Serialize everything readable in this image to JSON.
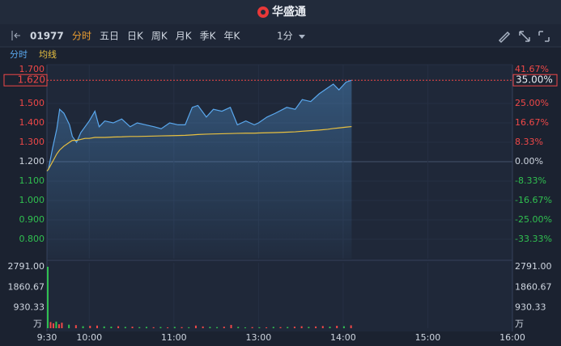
{
  "header": {
    "brand": "华盛通"
  },
  "toolbar": {
    "code": "01977",
    "tabs": [
      "分时",
      "五日",
      "日K",
      "周K",
      "月K",
      "季K",
      "年K"
    ],
    "active_tab": 0,
    "interval": "1分",
    "active_color": "#f0a030"
  },
  "chart_data": [
    {
      "type": "line",
      "x": [
        0,
        1,
        4,
        7,
        9,
        12,
        16,
        18,
        21,
        24,
        27,
        30,
        34,
        37,
        41,
        47,
        53,
        59,
        64,
        70,
        76,
        81,
        87,
        93,
        98,
        103,
        107,
        113,
        118,
        124,
        130,
        135,
        141,
        147,
        150,
        156,
        162,
        170,
        176,
        181,
        187,
        193,
        199,
        203,
        207,
        212,
        216
      ],
      "series": [
        {
          "name": "分时",
          "color": "#5aa8ee",
          "values": [
            1.152,
            1.16,
            1.27,
            1.37,
            1.47,
            1.45,
            1.39,
            1.33,
            1.3,
            1.35,
            1.38,
            1.41,
            1.46,
            1.38,
            1.41,
            1.4,
            1.42,
            1.38,
            1.4,
            1.39,
            1.38,
            1.37,
            1.4,
            1.39,
            1.39,
            1.48,
            1.49,
            1.43,
            1.47,
            1.46,
            1.48,
            1.39,
            1.41,
            1.39,
            1.4,
            1.43,
            1.45,
            1.48,
            1.47,
            1.52,
            1.51,
            1.55,
            1.58,
            1.6,
            1.57,
            1.61,
            1.62
          ]
        },
        {
          "name": "均线",
          "color": "#e8c040",
          "values": [
            1.152,
            1.16,
            1.2,
            1.24,
            1.26,
            1.28,
            1.3,
            1.31,
            1.31,
            1.315,
            1.32,
            1.32,
            1.325,
            1.325,
            1.325,
            1.327,
            1.328,
            1.33,
            1.33,
            1.331,
            1.332,
            1.333,
            1.334,
            1.335,
            1.336,
            1.338,
            1.34,
            1.342,
            1.343,
            1.344,
            1.345,
            1.346,
            1.347,
            1.347,
            1.348,
            1.349,
            1.35,
            1.352,
            1.354,
            1.357,
            1.36,
            1.363,
            1.367,
            1.371,
            1.374,
            1.378,
            1.381
          ]
        }
      ],
      "xlim": [
        0,
        330
      ],
      "xticks": [
        {
          "value": 0,
          "label": "9:30"
        },
        {
          "value": 30,
          "label": "10:00"
        },
        {
          "value": 90,
          "label": "11:00"
        },
        {
          "value": 150,
          "label": "13:00"
        },
        {
          "value": 210,
          "label": "14:00"
        },
        {
          "value": 270,
          "label": "15:00"
        },
        {
          "value": 330,
          "label": "16:00"
        }
      ],
      "ylim": [
        0.7,
        1.7
      ],
      "yticks": [
        {
          "value": 1.7,
          "label": "1.700"
        },
        {
          "value": 1.5,
          "label": "1.500"
        },
        {
          "value": 1.4,
          "label": "1.400"
        },
        {
          "value": 1.3,
          "label": "1.300"
        },
        {
          "value": 1.2,
          "label": "1.200"
        },
        {
          "value": 1.1,
          "label": "1.100"
        },
        {
          "value": 1.0,
          "label": "1.000"
        },
        {
          "value": 0.9,
          "label": "0.900"
        },
        {
          "value": 0.8,
          "label": "0.800"
        }
      ],
      "y2lim": [
        -41.67,
        41.67
      ],
      "y2ticks": [
        {
          "value": 41.67,
          "label": "41.67%"
        },
        {
          "value": 25,
          "label": "25.00%"
        },
        {
          "value": 16.67,
          "label": "16.67%"
        },
        {
          "value": 8.33,
          "label": "8.33%"
        },
        {
          "value": 0,
          "label": "0.00%"
        },
        {
          "value": -8.33,
          "label": "-8.33%"
        },
        {
          "value": -16.67,
          "label": "-16.67%"
        },
        {
          "value": -25,
          "label": "-25.00%"
        },
        {
          "value": -33.33,
          "label": "-33.33%"
        }
      ],
      "current_price": {
        "value": 1.62,
        "label": "1.620"
      },
      "current_change": {
        "value": 35,
        "label": "35.00%"
      },
      "up_color": "#f04848",
      "down_color": "#30c050",
      "flat_color": "#cfd6e0",
      "grid": true
    },
    {
      "type": "bar",
      "x": [
        0,
        2,
        4,
        6,
        8,
        10,
        15,
        20,
        25,
        30,
        35,
        40,
        45,
        50,
        55,
        60,
        65,
        70,
        75,
        80,
        85,
        90,
        95,
        100,
        105,
        110,
        115,
        120,
        125,
        130,
        135,
        140,
        145,
        150,
        155,
        160,
        165,
        170,
        175,
        180,
        185,
        190,
        195,
        200,
        205,
        210,
        215
      ],
      "values": [
        2791,
        280,
        220,
        300,
        180,
        250,
        160,
        140,
        90,
        110,
        120,
        80,
        70,
        90,
        60,
        70,
        50,
        60,
        45,
        55,
        40,
        60,
        50,
        45,
        120,
        80,
        60,
        50,
        70,
        150,
        60,
        40,
        50,
        45,
        40,
        60,
        50,
        55,
        70,
        90,
        60,
        80,
        100,
        70,
        110,
        90,
        130
      ],
      "colors": [
        "#30c050",
        "#f04848",
        "#f04848",
        "#30c050",
        "#f04848",
        "#f04848",
        "#30c050",
        "#f04848",
        "#30c050",
        "#f04848",
        "#f04848",
        "#30c050",
        "#30c050",
        "#f04848",
        "#30c050",
        "#f04848",
        "#30c050",
        "#30c050",
        "#f04848",
        "#30c050",
        "#f04848",
        "#30c050",
        "#f04848",
        "#30c050",
        "#f04848",
        "#f04848",
        "#30c050",
        "#30c050",
        "#f04848",
        "#f04848",
        "#30c050",
        "#30c050",
        "#f04848",
        "#30c050",
        "#f04848",
        "#30c050",
        "#f04848",
        "#30c050",
        "#f04848",
        "#f04848",
        "#30c050",
        "#f04848",
        "#f04848",
        "#30c050",
        "#f04848",
        "#30c050",
        "#f04848"
      ],
      "ylim": [
        0,
        2791
      ],
      "yticks": [
        {
          "value": 2791,
          "label": "2791.00"
        },
        {
          "value": 1860.67,
          "label": "1860.67"
        },
        {
          "value": 930.33,
          "label": "930.33"
        }
      ],
      "unit": "万"
    }
  ]
}
